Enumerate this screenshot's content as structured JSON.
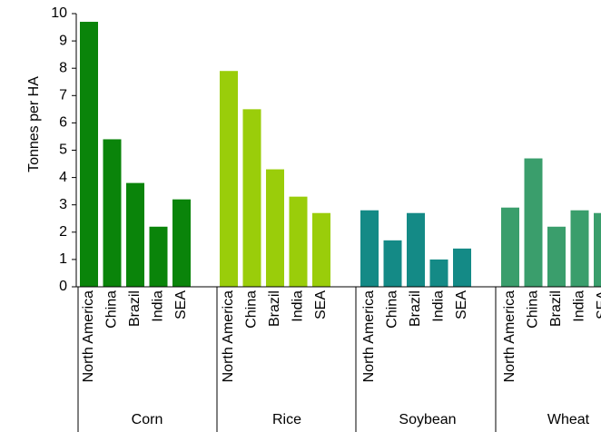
{
  "chart_data": {
    "type": "bar",
    "title": "",
    "ylabel": "Tonnes per HA",
    "ylim": [
      0,
      10
    ],
    "yticks": [
      "0",
      "1",
      "2",
      "3",
      "4",
      "5",
      "6",
      "7",
      "8",
      "9",
      "10"
    ],
    "grid": false,
    "groups": [
      {
        "name": "Corn",
        "color": "#0a840a",
        "categories": [
          "North America",
          "China",
          "Brazil",
          "India",
          "SEA"
        ],
        "values": [
          9.7,
          5.4,
          3.8,
          2.2,
          3.2
        ]
      },
      {
        "name": "Rice",
        "color": "#9acd0a",
        "categories": [
          "North America",
          "China",
          "Brazil",
          "India",
          "SEA"
        ],
        "values": [
          7.9,
          6.5,
          4.3,
          3.3,
          2.7
        ]
      },
      {
        "name": "Soybean",
        "color": "#148a86",
        "categories": [
          "North America",
          "China",
          "Brazil",
          "India",
          "SEA"
        ],
        "values": [
          2.8,
          1.7,
          2.7,
          1.0,
          1.4
        ]
      },
      {
        "name": "Wheat",
        "color": "#3a9e6c",
        "categories": [
          "North America",
          "China",
          "Brazil",
          "India",
          "SEA"
        ],
        "values": [
          2.9,
          4.7,
          2.2,
          2.8,
          2.7
        ]
      }
    ]
  }
}
